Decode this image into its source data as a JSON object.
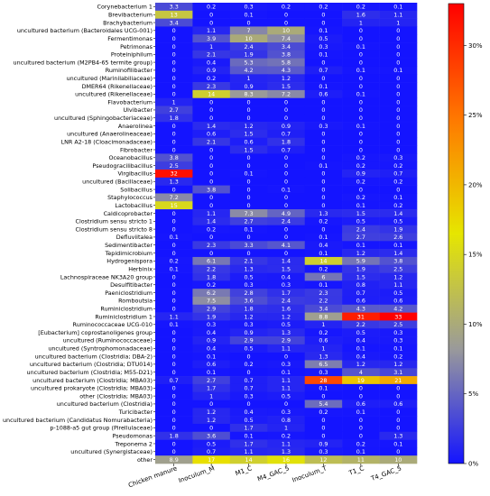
{
  "chart_data": {
    "type": "heatmap",
    "title": "",
    "xlabel": "",
    "ylabel": "",
    "columns": [
      "Chicken manure",
      "Inoculum_M",
      "M1_C",
      "M4_GAC_5",
      "Inoculum_T",
      "T1_C",
      "T4_GAC_5"
    ],
    "rows": [
      {
        "label": "Corynebacterium 1",
        "values": [
          3.3,
          0.2,
          0.3,
          0.2,
          0.2,
          0.2,
          0.1
        ]
      },
      {
        "label": "Brevibacterium",
        "values": [
          13,
          0,
          0.1,
          0,
          0,
          1.6,
          1.1
        ]
      },
      {
        "label": "Brachybacterium",
        "values": [
          3.4,
          0,
          0,
          0,
          0,
          1,
          1
        ]
      },
      {
        "label": "uncultured bacterium (Bacteroidales UCG-001)",
        "values": [
          0,
          1.1,
          7,
          10,
          0.1,
          0,
          0
        ]
      },
      {
        "label": "Fermentimonas",
        "values": [
          0,
          3.9,
          10,
          7.4,
          0.5,
          0,
          0
        ]
      },
      {
        "label": "Petrimonas",
        "values": [
          0,
          1,
          2.4,
          3.4,
          0.3,
          0.1,
          0
        ]
      },
      {
        "label": "Proteiniphilum",
        "values": [
          0,
          2.1,
          1.9,
          3.8,
          0.1,
          0,
          0
        ]
      },
      {
        "label": "uncultured bacterium (M2PB4-65 termite group)",
        "values": [
          0,
          0.4,
          5.3,
          5.8,
          0,
          0,
          0
        ]
      },
      {
        "label": "Ruminofilibacter",
        "values": [
          0,
          0.9,
          4.2,
          4.3,
          0.7,
          0.1,
          0.1
        ]
      },
      {
        "label": "uncultured (Marinilabiliaceae)",
        "values": [
          0,
          0.2,
          1,
          1.2,
          0,
          0,
          0
        ]
      },
      {
        "label": "DMER64 (Rikenellaceae)",
        "values": [
          0,
          2.3,
          0.9,
          1.5,
          0.1,
          0,
          0
        ]
      },
      {
        "label": "uncultured (Rikenellaceae)",
        "values": [
          0,
          14,
          8.3,
          7.2,
          0.6,
          0.1,
          0
        ]
      },
      {
        "label": "Flavobacterium",
        "values": [
          1,
          0,
          0,
          0,
          0,
          0,
          0
        ]
      },
      {
        "label": "Ulvibacter",
        "values": [
          2.7,
          0,
          0,
          0,
          0,
          0,
          0
        ]
      },
      {
        "label": "uncultured (Sphingobacteriaceae)",
        "values": [
          1.8,
          0,
          0,
          0,
          0,
          0,
          0
        ]
      },
      {
        "label": "Anaerolinea",
        "values": [
          0,
          1.4,
          1.2,
          0.9,
          0.3,
          0.1,
          0
        ]
      },
      {
        "label": "uncultured (Anaerolineaceae)",
        "values": [
          0,
          0.6,
          1.5,
          0.7,
          0,
          0,
          0
        ]
      },
      {
        "label": "LNR A2-18 (Cloacimonadaceae)",
        "values": [
          0,
          2.1,
          0.6,
          1.8,
          0,
          0,
          0
        ]
      },
      {
        "label": "Fibrobacter",
        "values": [
          0,
          0,
          1.5,
          0.7,
          0,
          0,
          0
        ]
      },
      {
        "label": "Oceanobacillus",
        "values": [
          3.8,
          0,
          0,
          0,
          0,
          0.2,
          0.3
        ]
      },
      {
        "label": "Pseudogracilibacillus",
        "values": [
          2.5,
          0,
          0,
          0,
          0.1,
          0.2,
          0.2
        ]
      },
      {
        "label": "Virgibacillus",
        "values": [
          32,
          0,
          0.1,
          0,
          0,
          0.9,
          0.7
        ]
      },
      {
        "label": "uncultured (Bacillaceae)",
        "values": [
          1.3,
          0,
          0,
          0,
          0,
          0.2,
          0.2
        ]
      },
      {
        "label": "Solibacillus",
        "values": [
          0,
          3.8,
          0,
          0.1,
          0,
          0,
          0
        ]
      },
      {
        "label": "Staphylococcus",
        "values": [
          7.2,
          0,
          0,
          0,
          0,
          0.2,
          0.1
        ]
      },
      {
        "label": "Lactobacillus",
        "values": [
          15,
          0,
          0,
          0,
          0,
          0.1,
          0.2
        ]
      },
      {
        "label": "Caldicoprobacter",
        "values": [
          0,
          1.1,
          7.3,
          4.9,
          1.3,
          1.5,
          1.4
        ]
      },
      {
        "label": "Clostridium sensu stricto 1",
        "values": [
          0,
          1.4,
          2.7,
          2.4,
          0.2,
          0.5,
          0.5
        ]
      },
      {
        "label": "Clostridium sensu stricto 8",
        "values": [
          0,
          0.2,
          0.1,
          0,
          0,
          2.4,
          1.9
        ]
      },
      {
        "label": "Defluviitalea",
        "values": [
          0.1,
          0,
          0,
          0,
          0.1,
          2.7,
          2.6
        ]
      },
      {
        "label": "Sedimentibacter",
        "values": [
          0,
          2.3,
          3.3,
          4.1,
          0.4,
          0.1,
          0.1
        ]
      },
      {
        "label": "Tepidimicrobium",
        "values": [
          0,
          0,
          0,
          0,
          0.1,
          1.2,
          1.4
        ]
      },
      {
        "label": "Hydrogenispora",
        "values": [
          0.2,
          6.1,
          2.1,
          1.4,
          14,
          5.9,
          3.8
        ]
      },
      {
        "label": "Herbinix",
        "values": [
          0.1,
          2.2,
          1.3,
          1.5,
          0.2,
          1.9,
          2.5
        ]
      },
      {
        "label": "Lachnospiraceae NK3A20 group",
        "values": [
          0,
          1.8,
          0.5,
          0.4,
          6,
          1.5,
          1.2
        ]
      },
      {
        "label": "Desulfitibacter",
        "values": [
          0,
          0.2,
          0.3,
          0.3,
          0.1,
          0.8,
          1.1
        ]
      },
      {
        "label": "Paeniclostridium",
        "values": [
          0,
          6.2,
          2.8,
          1.7,
          2.3,
          0.7,
          0.5
        ]
      },
      {
        "label": "Romboutsia",
        "values": [
          0,
          7.5,
          3.6,
          2.4,
          2.2,
          0.6,
          0.6
        ]
      },
      {
        "label": "Ruminiclostridium",
        "values": [
          0,
          2.9,
          1.8,
          1.6,
          3.4,
          4.3,
          4.2
        ]
      },
      {
        "label": "Ruminiclostridium 1",
        "values": [
          1.1,
          1.9,
          1.2,
          1.2,
          8.8,
          31,
          33
        ]
      },
      {
        "label": "Ruminococcaceae UCG-010",
        "values": [
          0.1,
          0.3,
          0.3,
          0.5,
          1,
          2.2,
          2.5
        ]
      },
      {
        "label": "[Eubacterium] coprostanoligenes group",
        "values": [
          0,
          0.4,
          0.9,
          1.3,
          0.2,
          0.5,
          0.3
        ]
      },
      {
        "label": "uncultured (Ruminococcaceae)",
        "values": [
          0,
          0.9,
          2.9,
          2.9,
          0.6,
          0.4,
          0.3
        ]
      },
      {
        "label": "uncultured (Syntrophomonadaceae)",
        "values": [
          0,
          0.4,
          0.5,
          1.1,
          1,
          0.1,
          0.1
        ]
      },
      {
        "label": "uncultured bacterium (Clostridia; DBA-2)",
        "values": [
          0,
          0.1,
          0,
          0,
          1.3,
          0.4,
          0.2
        ]
      },
      {
        "label": "uncultured bacterium (Clostridia; DTU014)",
        "values": [
          0,
          0.6,
          0.2,
          0.3,
          6.5,
          1.2,
          1.2
        ]
      },
      {
        "label": "uncultured bacterium (Clostridia; M55-D21)",
        "values": [
          0,
          0.1,
          0,
          0.1,
          0.3,
          4,
          3.1
        ]
      },
      {
        "label": "uncultured bacterium (Clostridia; MBA03)",
        "values": [
          0.7,
          2.7,
          0.7,
          1.1,
          28,
          19,
          21
        ]
      },
      {
        "label": "uncultured prokaryote (Clostridia; MBA03)",
        "values": [
          0,
          1.7,
          0.7,
          1.1,
          0.1,
          0,
          0
        ]
      },
      {
        "label": "other (Clostridia; MBA03)",
        "values": [
          0,
          1,
          0.3,
          0.5,
          0,
          0,
          0
        ]
      },
      {
        "label": "uncultured bacterium (Clostridia)",
        "values": [
          0,
          0,
          0,
          0,
          5.4,
          0.6,
          0.6
        ]
      },
      {
        "label": "Turicibacter",
        "values": [
          0,
          1.2,
          0.4,
          0.3,
          0.2,
          0.1,
          0
        ]
      },
      {
        "label": "uncultured bacterium (Candidatus Nomurabacteria)",
        "values": [
          0,
          1.2,
          0.5,
          0.8,
          0,
          0,
          0
        ]
      },
      {
        "label": "p-1088-a5 gut group (Pirellulaceae)",
        "values": [
          0,
          0,
          1.7,
          1,
          0,
          0,
          0
        ]
      },
      {
        "label": "Pseudomonas",
        "values": [
          1.8,
          3.6,
          0.1,
          0.2,
          0,
          0,
          1.3
        ]
      },
      {
        "label": "Treponema 2",
        "values": [
          0,
          0.5,
          1.7,
          1.1,
          0.9,
          0.2,
          0.1
        ]
      },
      {
        "label": "uncultured (Synergistaceae)",
        "values": [
          0,
          0.7,
          1.1,
          1.3,
          0.3,
          0.1,
          0
        ]
      },
      {
        "label": "other",
        "values": [
          8.9,
          17,
          14,
          16,
          12,
          11,
          10
        ]
      }
    ],
    "colorbar": {
      "ticks": [
        "0%",
        "5%",
        "10%",
        "15%",
        "20%",
        "25%",
        "30%"
      ],
      "tick_values": [
        0,
        5,
        10,
        15,
        20,
        25,
        30
      ],
      "range": [
        0,
        33
      ],
      "colors": [
        "#1414ff",
        "#9a9a9a",
        "#e6e600",
        "#ff7800",
        "#ff0000"
      ]
    }
  }
}
